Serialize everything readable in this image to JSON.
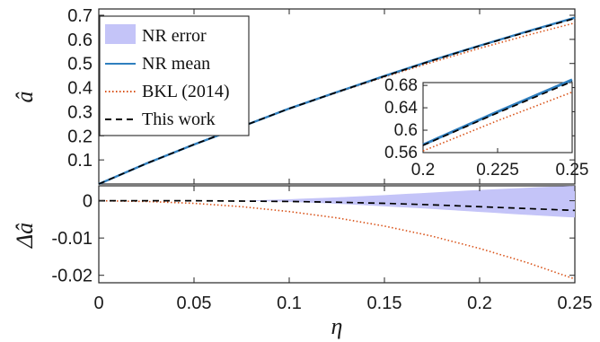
{
  "colors": {
    "nr_error": "#c4c4f8",
    "nr_mean": "#2f7fbf",
    "bkl": "#d95319",
    "this_work": "#000000"
  },
  "chart_data": [
    {
      "type": "line",
      "panel": "top",
      "ylabel": "â",
      "xlim": [
        0,
        0.25
      ],
      "ylim": [
        0,
        0.7
      ],
      "yticks": [
        "0.1",
        "0.2",
        "0.3",
        "0.4",
        "0.5",
        "0.6",
        "0.7"
      ],
      "legend": {
        "placement": "top-left",
        "entries": [
          "NR error",
          "NR mean",
          "BKL (2014)",
          "This work"
        ]
      },
      "x": [
        0,
        0.025,
        0.05,
        0.075,
        0.1,
        0.125,
        0.15,
        0.175,
        0.2,
        0.225,
        0.25
      ],
      "series": [
        {
          "name": "NR mean",
          "values": [
            0.0,
            0.085,
            0.164,
            0.238,
            0.313,
            0.381,
            0.448,
            0.513,
            0.574,
            0.633,
            0.69
          ]
        },
        {
          "name": "BKL (2014)",
          "values": [
            0.0,
            0.085,
            0.164,
            0.238,
            0.312,
            0.379,
            0.444,
            0.505,
            0.563,
            0.617,
            0.668
          ]
        },
        {
          "name": "This work",
          "values": [
            0.0,
            0.085,
            0.164,
            0.238,
            0.313,
            0.381,
            0.447,
            0.512,
            0.573,
            0.631,
            0.687
          ]
        }
      ],
      "inset": {
        "placement": "bottom-right",
        "xlim": [
          0.2,
          0.25
        ],
        "ylim": [
          0.56,
          0.685
        ],
        "xticks": [
          "0.2",
          "0.225",
          "0.25"
        ],
        "yticks": [
          "0.56",
          "0.6",
          "0.64",
          "0.68"
        ]
      }
    },
    {
      "type": "line",
      "panel": "bottom",
      "xlabel": "η",
      "ylabel": "Δâ",
      "xlim": [
        0,
        0.25
      ],
      "ylim": [
        -0.022,
        0.004
      ],
      "xticks": [
        "0",
        "0.05",
        "0.1",
        "0.15",
        "0.2",
        "0.25"
      ],
      "yticks": [
        "0",
        "-0.01",
        "-0.02"
      ],
      "x": [
        0,
        0.025,
        0.05,
        0.075,
        0.1,
        0.125,
        0.15,
        0.175,
        0.2,
        0.225,
        0.25
      ],
      "series": [
        {
          "name": "NR error",
          "lower": [
            0,
            0,
            0,
            0,
            -0.0003,
            -0.0008,
            -0.0015,
            -0.0022,
            -0.003,
            -0.0038,
            -0.0045
          ],
          "upper": [
            0,
            0,
            0,
            0,
            0.0004,
            0.0009,
            0.0015,
            0.0022,
            0.0029,
            0.0035,
            0.004
          ]
        },
        {
          "name": "BKL (2014)",
          "values": [
            0,
            -0.0002,
            -0.0007,
            -0.0016,
            -0.0029,
            -0.0046,
            -0.0068,
            -0.0095,
            -0.0128,
            -0.0166,
            -0.021
          ]
        },
        {
          "name": "This work",
          "values": [
            0,
            0,
            0,
            -0.0001,
            -0.0002,
            -0.0004,
            -0.0007,
            -0.0011,
            -0.0016,
            -0.0021,
            -0.0026
          ]
        }
      ]
    }
  ]
}
